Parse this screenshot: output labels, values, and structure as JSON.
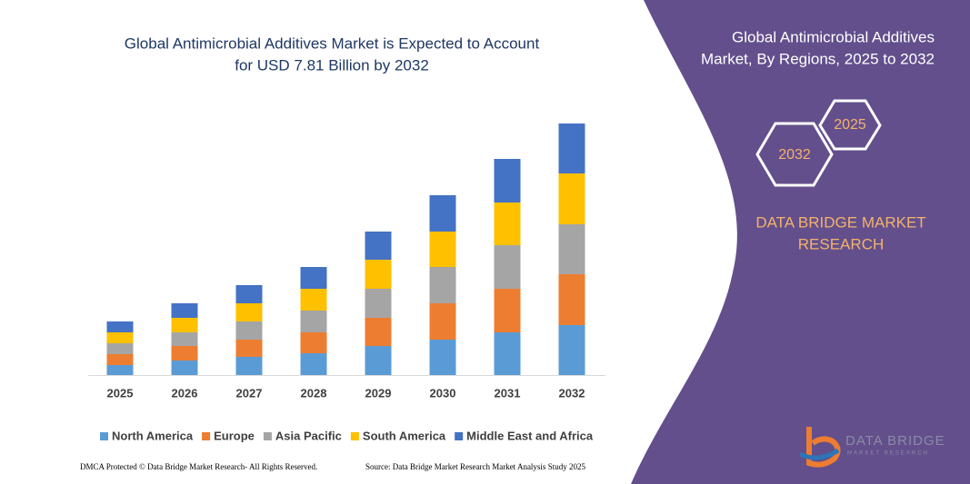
{
  "chart_data": {
    "type": "stacked_bar",
    "title": [
      "Global Antimicrobial Additives Market is Expected to Account",
      "for USD 7.81 Billion by 2032"
    ],
    "categories": [
      "2025",
      "2026",
      "2027",
      "2028",
      "2029",
      "2030",
      "2031",
      "2032"
    ],
    "series": [
      {
        "name": "North America",
        "color": "#5b9bd5",
        "values": [
          11,
          16,
          20,
          24,
          32,
          39,
          47,
          55
        ]
      },
      {
        "name": "Europe",
        "color": "#ed7d31",
        "values": [
          12,
          16,
          19,
          23,
          31,
          40,
          48,
          56
        ]
      },
      {
        "name": "Asia Pacific",
        "color": "#a5a5a5",
        "values": [
          12,
          15,
          20,
          24,
          32,
          40,
          48,
          55
        ]
      },
      {
        "name": "South America",
        "color": "#ffc000",
        "values": [
          12,
          16,
          20,
          24,
          32,
          39,
          47,
          56
        ]
      },
      {
        "name": "Middle East and Africa",
        "color": "#4472c4",
        "values": [
          12,
          16,
          20,
          24,
          31,
          40,
          48,
          55
        ]
      }
    ]
  },
  "panel": {
    "title": [
      "Global Antimicrobial Additives",
      "Market, By Regions, 2025 to 2032"
    ],
    "hex_large": "2032",
    "hex_small": "2025",
    "brand": [
      "DATA BRIDGE MARKET",
      "RESEARCH"
    ],
    "logo": [
      "DATA BRIDGE",
      "MARKET RESEARCH"
    ]
  },
  "footer": {
    "left": "DMCA Protected © Data Bridge Market Research- All Rights Reserved.",
    "right": "Source: Data Bridge Market Research Market Analysis Study 2025"
  }
}
